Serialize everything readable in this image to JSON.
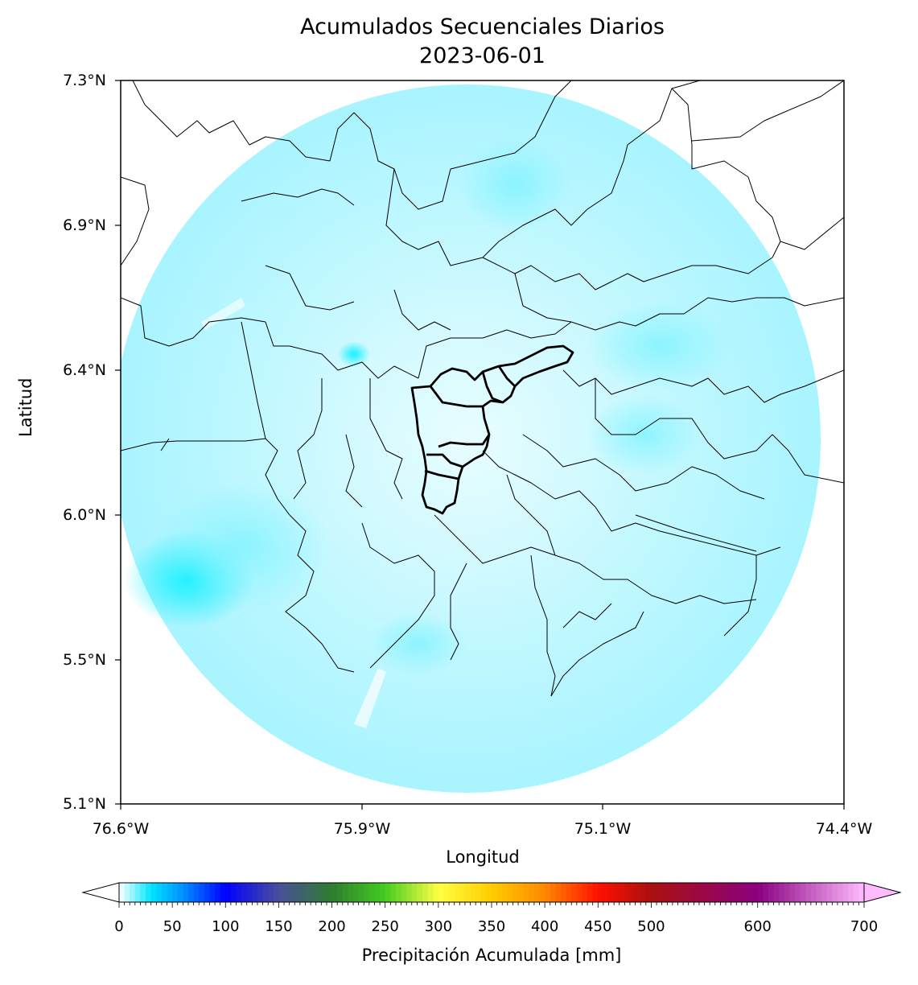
{
  "title": {
    "line1": "Acumulados Secuenciales Diarios",
    "line2": "2023-06-01"
  },
  "axes": {
    "xlabel": "Longitud",
    "ylabel": "Latitud",
    "xticks": [
      "76.6°W",
      "75.9°W",
      "75.1°W",
      "74.4°W"
    ],
    "yticks": [
      "7.3°N",
      "6.9°N",
      "6.4°N",
      "6.0°N",
      "5.5°N",
      "5.1°N"
    ]
  },
  "colorbar": {
    "label": "Precipitación Acumulada [mm]",
    "ticks": [
      "0",
      "50",
      "100",
      "150",
      "200",
      "250",
      "300",
      "350",
      "400",
      "450",
      "500",
      "600",
      "700"
    ],
    "tick_values": [
      0,
      50,
      100,
      150,
      200,
      250,
      300,
      350,
      400,
      450,
      500,
      600,
      700
    ],
    "min": 0,
    "max": 700,
    "extend": "both",
    "stops": [
      {
        "value": 0,
        "color": "#ffffff"
      },
      {
        "value": 30,
        "color": "#00e5ff"
      },
      {
        "value": 60,
        "color": "#0090ff"
      },
      {
        "value": 100,
        "color": "#0000ff"
      },
      {
        "value": 150,
        "color": "#4a4e9a"
      },
      {
        "value": 200,
        "color": "#2e7d2e"
      },
      {
        "value": 250,
        "color": "#44cc22"
      },
      {
        "value": 300,
        "color": "#ffff44"
      },
      {
        "value": 350,
        "color": "#ffcc00"
      },
      {
        "value": 400,
        "color": "#ff8800"
      },
      {
        "value": 450,
        "color": "#ff1100"
      },
      {
        "value": 500,
        "color": "#aa1010"
      },
      {
        "value": 600,
        "color": "#8a0080"
      },
      {
        "value": 700,
        "color": "#ffbbff"
      }
    ]
  },
  "map": {
    "lon_range": [
      "76.6°W",
      "74.4°W"
    ],
    "lat_range": [
      "5.1°N",
      "7.3°N"
    ],
    "colors": {
      "precip_light": "#c8fbff",
      "precip_mid": "#7ff3ff",
      "precip_strong": "#00f0ff",
      "boundary": "#000000"
    }
  }
}
